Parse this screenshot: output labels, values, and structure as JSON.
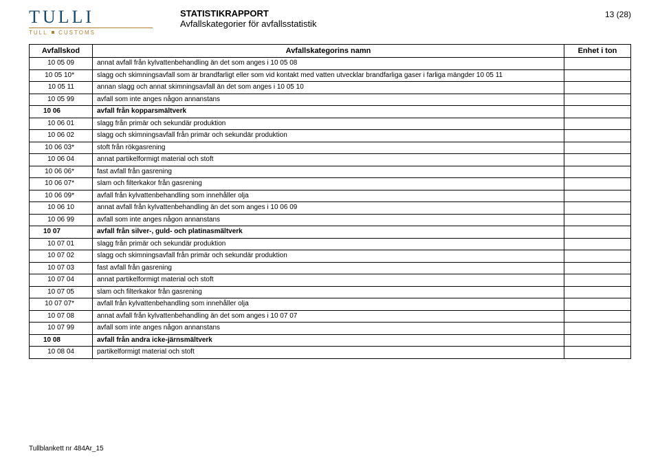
{
  "logo": {
    "word": "TULLI",
    "sub_left": "TULL",
    "sub_right": "CUSTOMS"
  },
  "header": {
    "title1": "STATISTIKRAPPORT",
    "title2": "Avfallskategorier för avfallsstatistik",
    "pagenum": "13 (28)"
  },
  "columns": {
    "code": "Avfallskod",
    "name": "Avfallskategorins namn",
    "unit": "Enhet i ton"
  },
  "rows": [
    {
      "indent": 1,
      "code": "10 05 09",
      "name": "annat avfall från kylvattenbehandling än det som anges i 10 05 08"
    },
    {
      "indent": 1,
      "code": "10 05 10*",
      "name": "slagg och skimningsavfall som är brandfarligt eller som vid kontakt med vatten utvecklar brandfarliga gaser i farliga mängder 10 05 11"
    },
    {
      "indent": 1,
      "code": "10 05 11",
      "name": "annan slagg och annat skimningsavfall än det som anges i 10 05 10"
    },
    {
      "indent": 1,
      "code": "10 05 99",
      "name": "avfall som inte anges någon annanstans"
    },
    {
      "indent": 0,
      "code": "10 06",
      "name": "avfall från kopparsmältverk",
      "section": true
    },
    {
      "indent": 1,
      "code": "10 06 01",
      "name": "slagg från primär och sekundär produktion"
    },
    {
      "indent": 1,
      "code": "10 06 02",
      "name": "slagg och skimningsavfall från primär och sekundär produktion"
    },
    {
      "indent": 1,
      "code": "10 06 03*",
      "name": "stoft från rökgasrening"
    },
    {
      "indent": 1,
      "code": "10 06 04",
      "name": "annat partikelformigt material och stoft"
    },
    {
      "indent": 1,
      "code": "10 06 06*",
      "name": "fast avfall från gasrening"
    },
    {
      "indent": 1,
      "code": "10 06 07*",
      "name": "slam och filterkakor från gasrening"
    },
    {
      "indent": 1,
      "code": "10 06 09*",
      "name": "avfall från kylvattenbehandling som innehåller olja"
    },
    {
      "indent": 1,
      "code": "10 06 10",
      "name": "annat avfall från kylvattenbehandling än det som anges i 10 06 09"
    },
    {
      "indent": 1,
      "code": "10 06 99",
      "name": "avfall som inte anges någon annanstans"
    },
    {
      "indent": 0,
      "code": "10 07",
      "name": "avfall från silver-, guld- och platinasmältverk",
      "section": true
    },
    {
      "indent": 1,
      "code": "10 07 01",
      "name": "slagg från primär och sekundär produktion"
    },
    {
      "indent": 1,
      "code": "10 07 02",
      "name": "slagg och skimningsavfall från primär och sekundär produktion"
    },
    {
      "indent": 1,
      "code": "10 07 03",
      "name": "fast avfall från gasrening"
    },
    {
      "indent": 1,
      "code": "10 07 04",
      "name": "annat partikelformigt material och stoft"
    },
    {
      "indent": 1,
      "code": "10 07 05",
      "name": "slam och filterkakor från gasrening"
    },
    {
      "indent": 1,
      "code": "10 07 07*",
      "name": "avfall från kylvattenbehandling som innehåller olja"
    },
    {
      "indent": 1,
      "code": "10 07 08",
      "name": "annat avfall från kylvattenbehandling än det som anges i 10 07 07"
    },
    {
      "indent": 1,
      "code": "10 07 99",
      "name": "avfall som inte anges någon annanstans"
    },
    {
      "indent": 0,
      "code": "10 08",
      "name": "avfall från andra icke-järnsmältverk",
      "section": true
    },
    {
      "indent": 1,
      "code": "10 08 04",
      "name": "partikelformigt material och stoft"
    }
  ],
  "footer": "Tullblankett nr 484Ar_15"
}
